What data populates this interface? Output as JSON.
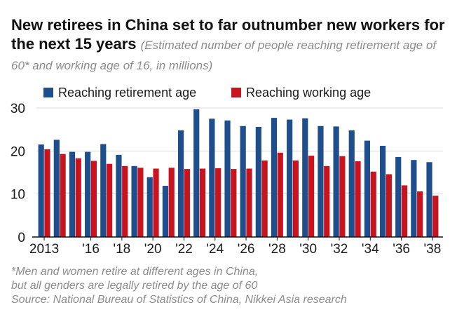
{
  "title": "New retirees in China set to far outnumber new workers for the next 15 years",
  "subtitle": "(Estimated number of people reaching retirement age of 60* and working age of 16, in millions)",
  "colors": {
    "retirement": "#1f4e8c",
    "working": "#c8141e",
    "grid": "#d9d9d9",
    "axis": "#111111",
    "note": "#8c8c8c"
  },
  "chart_data": {
    "type": "bar",
    "title": "New retirees in China set to far outnumber new workers for the next 15 years",
    "xlabel": "",
    "ylabel": "",
    "ylim": [
      0,
      30
    ],
    "yticks": [
      "0",
      "10",
      "20",
      "30"
    ],
    "x_tick_labels": [
      "2013",
      "'16",
      "'18",
      "'20",
      "'22",
      "'24",
      "'26",
      "'28",
      "'30",
      "'32",
      "'34",
      "'36",
      "'38"
    ],
    "categories": [
      2013,
      2014,
      2015,
      2016,
      2017,
      2018,
      2019,
      2020,
      2021,
      2022,
      2023,
      2024,
      2025,
      2026,
      2027,
      2028,
      2029,
      2030,
      2031,
      2032,
      2033,
      2034,
      2035,
      2036,
      2037,
      2038
    ],
    "series": [
      {
        "name": "Reaching retirement age",
        "values": [
          21.5,
          22.6,
          19.8,
          19.8,
          21.6,
          19.1,
          16.5,
          13.9,
          11.9,
          24.8,
          29.7,
          27.5,
          27.1,
          25.8,
          25.6,
          27.7,
          27.3,
          27.6,
          25.8,
          25.7,
          24.8,
          22.4,
          21.2,
          18.6,
          17.9,
          17.4
        ]
      },
      {
        "name": "Reaching working age",
        "values": [
          20.4,
          19.3,
          18.3,
          17.7,
          17.0,
          16.5,
          16.1,
          15.9,
          16.1,
          15.8,
          15.9,
          16.0,
          15.8,
          15.9,
          17.8,
          19.6,
          17.8,
          18.9,
          16.5,
          18.8,
          17.6,
          15.2,
          14.6,
          12.0,
          10.6,
          9.6
        ]
      }
    ]
  },
  "notes": {
    "footnote_line1": "*Men and women retire at different ages in China,",
    "footnote_line2": "but all genders are legally retired by the age of 60",
    "source": "Source: National Bureau of Statistics of China, Nikkei Asia research"
  }
}
